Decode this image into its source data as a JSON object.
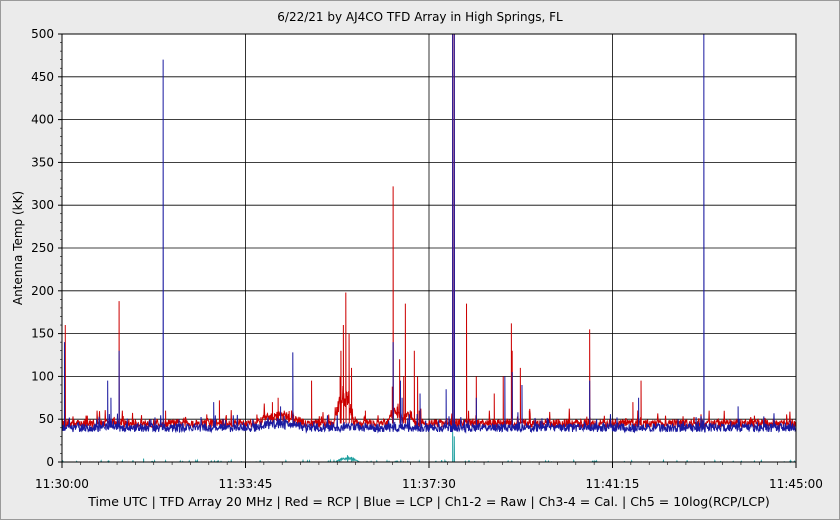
{
  "chart_data": {
    "type": "line",
    "title": "6/22/21  by  AJ4CO TFD Array  in  High Springs, FL",
    "ylabel": "Antenna Temp (kK)",
    "xlabel": "Time UTC | TFD Array 20 MHz | Red = RCP | Blue = LCP | Ch1-2 = Raw | Ch3-4 = Cal. | Ch5 = 10log(RCP/LCP)",
    "x_ticks": [
      "11:30:00",
      "11:33:45",
      "11:37:30",
      "11:41:15",
      "11:45:00"
    ],
    "y_ticks": [
      "0",
      "50",
      "100",
      "150",
      "200",
      "250",
      "300",
      "350",
      "400",
      "450",
      "500"
    ],
    "ylim": [
      0,
      500
    ],
    "x_range_seconds_after_start": [
      0,
      900
    ],
    "grid": true,
    "series": [
      {
        "color": "#cc0000",
        "baseline": 45,
        "spikes": [
          [
            4,
            160
          ],
          [
            70,
            188
          ],
          [
            127,
            60
          ],
          [
            193,
            72
          ],
          [
            258,
            70
          ],
          [
            265,
            75
          ],
          [
            284,
            55
          ],
          [
            306,
            95
          ],
          [
            341,
            100
          ],
          [
            342,
            130
          ],
          [
            345,
            160
          ],
          [
            348,
            198
          ],
          [
            352,
            150
          ],
          [
            355,
            110
          ],
          [
            372,
            60
          ],
          [
            405,
            88
          ],
          [
            406,
            322
          ],
          [
            414,
            120
          ],
          [
            419,
            100
          ],
          [
            421,
            185
          ],
          [
            432,
            130
          ],
          [
            436,
            100
          ],
          [
            438,
            60
          ],
          [
            479,
            500
          ],
          [
            481,
            500
          ],
          [
            496,
            185
          ],
          [
            508,
            100
          ],
          [
            530,
            80
          ],
          [
            541,
            100
          ],
          [
            551,
            162
          ],
          [
            552,
            130
          ],
          [
            562,
            110
          ],
          [
            573,
            60
          ],
          [
            647,
            155
          ],
          [
            700,
            70
          ],
          [
            710,
            95
          ]
        ],
        "humps": [
          [
            346,
            12,
            30
          ],
          [
            268,
            30,
            8
          ],
          [
            409,
            10,
            15
          ],
          [
            425,
            8,
            10
          ]
        ]
      },
      {
        "color": "#1a1aa0",
        "baseline": 40,
        "spikes": [
          [
            3,
            140
          ],
          [
            56,
            95
          ],
          [
            60,
            75
          ],
          [
            70,
            130
          ],
          [
            124,
            470
          ],
          [
            186,
            70
          ],
          [
            268,
            65
          ],
          [
            283,
            128
          ],
          [
            406,
            140
          ],
          [
            415,
            95
          ],
          [
            417,
            75
          ],
          [
            439,
            80
          ],
          [
            471,
            85
          ],
          [
            479,
            500
          ],
          [
            481,
            500
          ],
          [
            508,
            75
          ],
          [
            543,
            100
          ],
          [
            552,
            105
          ],
          [
            564,
            90
          ],
          [
            647,
            95
          ],
          [
            707,
            75
          ],
          [
            787,
            500
          ],
          [
            829,
            65
          ]
        ],
        "humps": [
          [
            268,
            30,
            5
          ],
          [
            59,
            6,
            5
          ]
        ]
      },
      {
        "color": "#20a0a0",
        "baseline": 0,
        "spikes": [
          [
            479,
            35
          ],
          [
            481,
            30
          ],
          [
            100,
            4
          ],
          [
            350,
            8
          ],
          [
            355,
            6
          ]
        ],
        "humps": [
          [
            350,
            15,
            4
          ]
        ]
      }
    ]
  }
}
